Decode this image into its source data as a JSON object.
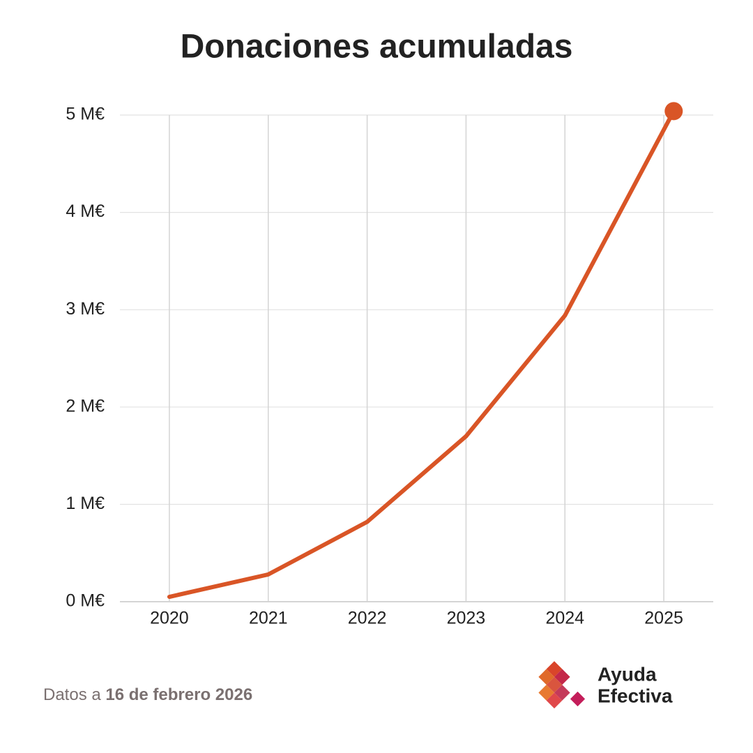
{
  "chart_data": {
    "type": "line",
    "title": "Donaciones acumuladas",
    "x": [
      2020,
      2021,
      2022,
      2023,
      2024,
      2025.1
    ],
    "values": [
      0.05,
      0.28,
      0.82,
      1.7,
      2.94,
      5.04
    ],
    "color": "#d95526",
    "xlim": [
      2019.5,
      2025.5
    ],
    "xticks": [
      2020,
      2021,
      2022,
      2023,
      2024,
      2025
    ],
    "ylim": [
      0,
      5
    ],
    "yticks": [
      {
        "value": 0,
        "label": "0 M€"
      },
      {
        "value": 1,
        "label": "1 M€"
      },
      {
        "value": 2,
        "label": "2 M€"
      },
      {
        "value": 3,
        "label": "3 M€"
      },
      {
        "value": 4,
        "label": "4 M€"
      },
      {
        "value": 5,
        "label": "5 M€"
      }
    ],
    "grid": true,
    "source_prefix": "Datos a",
    "source_date": "16 de febrero 2026",
    "brand_lines": [
      "Ayuda",
      "Efectiva"
    ]
  }
}
